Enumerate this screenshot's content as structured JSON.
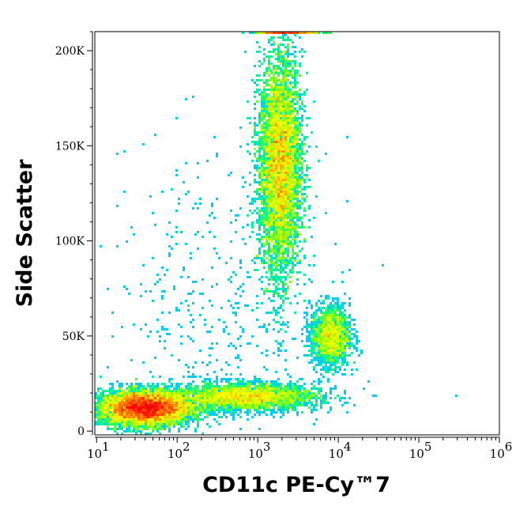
{
  "chart_data": {
    "type": "heatmap",
    "subtype": "flow-cytometry density dot plot",
    "xlabel": "CD11c PE-Cy™7",
    "ylabel": "Side Scatter",
    "x_scale": "log",
    "xlim": [
      9.5,
      1000000
    ],
    "ylim": [
      -2000,
      210000
    ],
    "x_ticks": [
      {
        "value": 10,
        "base": "10",
        "exp": "1"
      },
      {
        "value": 100,
        "base": "10",
        "exp": "2"
      },
      {
        "value": 1000,
        "base": "10",
        "exp": "3"
      },
      {
        "value": 10000,
        "base": "10",
        "exp": "4"
      },
      {
        "value": 100000,
        "base": "10",
        "exp": "5"
      },
      {
        "value": 1000000,
        "base": "10",
        "exp": "6"
      }
    ],
    "y_ticks": [
      {
        "value": 0,
        "label": "0"
      },
      {
        "value": 50000,
        "label": "50K"
      },
      {
        "value": 100000,
        "label": "100K"
      },
      {
        "value": 150000,
        "label": "150K"
      },
      {
        "value": 200000,
        "label": "200K"
      }
    ],
    "grid": false,
    "colormap": [
      "#0000ff",
      "#00c8ff",
      "#00ff80",
      "#a0ff00",
      "#ffff00",
      "#ff8000",
      "#ff0000"
    ],
    "populations": [
      {
        "x_median": 40,
        "y_median": 12000,
        "log_x_sd": 0.28,
        "y_sd": 4500,
        "events": 9000
      },
      {
        "x_median": 700,
        "y_median": 18000,
        "log_x_sd": 0.45,
        "y_sd": 3500,
        "events": 3500
      },
      {
        "x_median": 1900,
        "y_median": 140000,
        "log_x_sd": 0.13,
        "y_sd": 28000,
        "events": 9000
      },
      {
        "x_median": 8000,
        "y_median": 50000,
        "log_x_sd": 0.12,
        "y_sd": 8000,
        "events": 1800
      },
      {
        "x_median": 2500,
        "y_median": 210000,
        "log_x_sd": 0.2,
        "y_sd": 300,
        "events": 500
      },
      {
        "x_median": 300,
        "y_median": 60000,
        "log_x_sd": 0.7,
        "y_sd": 45000,
        "events": 500
      }
    ]
  }
}
